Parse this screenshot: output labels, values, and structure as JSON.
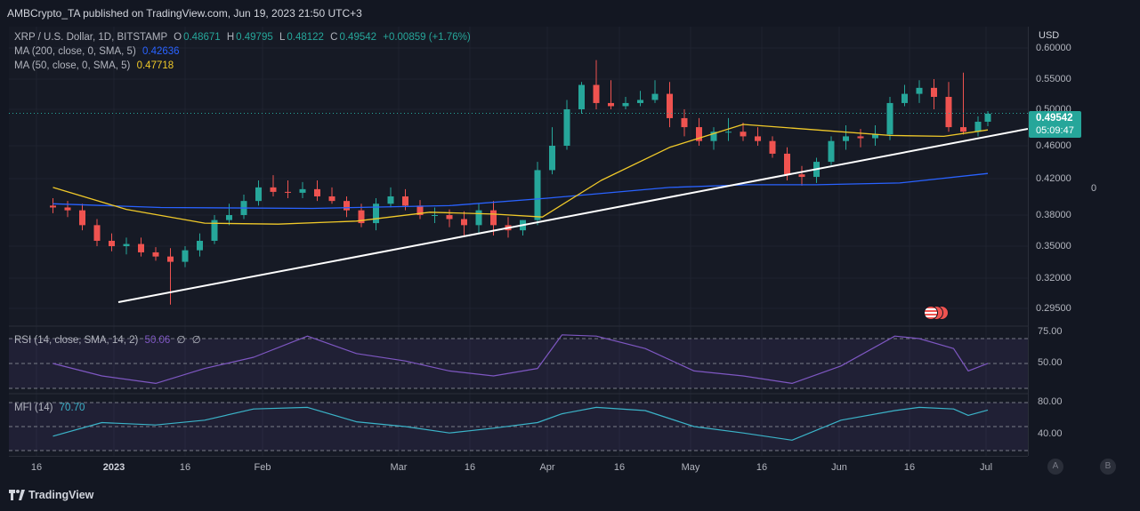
{
  "header": {
    "published": "AMBCrypto_TA published on TradingView.com, Jun 19, 2023 21:50 UTC+3"
  },
  "main_legend": {
    "symbol": "XRP / U.S. Dollar, 1D, BITSTAMP",
    "o_label": "O",
    "o": "0.48671",
    "h_label": "H",
    "h": "0.49795",
    "l_label": "L",
    "l": "0.48122",
    "c_label": "C",
    "c": "0.49542",
    "change": "+0.00859 (+1.76%)",
    "ma200_label": "MA (200, close, 0, SMA, 5)",
    "ma200_value": "0.42636",
    "ma50_label": "MA (50, close, 0, SMA, 5)",
    "ma50_value": "0.47718"
  },
  "rsi_legend": {
    "label": "RSI (14, close, SMA, 14, 2)",
    "value": "50.06",
    "extra1": "∅",
    "extra2": "∅"
  },
  "mfi_legend": {
    "label": "MFI (14)",
    "value": "70.70"
  },
  "price_axis": {
    "currency": "USD",
    "labels": [
      "0.60000",
      "0.55000",
      "0.50000",
      "0.46000",
      "0.42000",
      "0.38000",
      "0.35000",
      "0.32000",
      "0.29500"
    ],
    "current_price": "0.49542",
    "countdown": "05:09:47"
  },
  "rsi_axis": [
    "75.00",
    "50.00"
  ],
  "mfi_axis": [
    "80.00",
    "40.00"
  ],
  "right_panel": {
    "zero_label": "0"
  },
  "time_axis": [
    "16",
    "2023",
    "16",
    "Feb",
    "Mar",
    "16",
    "Apr",
    "16",
    "May",
    "16",
    "Jun",
    "16",
    "Jul"
  ],
  "buttons": {
    "a": "A",
    "b": "B"
  },
  "footer": {
    "brand": "TradingView"
  },
  "colors": {
    "up": "#26a69a",
    "down": "#ef5350",
    "ma200": "#2962ff",
    "ma50": "#f0c929",
    "trendline": "#ffffff",
    "rsi": "#7e57c2",
    "mfi": "#3bb3c8"
  },
  "chart_data": [
    {
      "type": "candlestick",
      "title": "XRP / U.S. Dollar, 1D, BITSTAMP",
      "ylabel": "USD",
      "yscale": "log",
      "x": [
        "2022-12-10",
        "2022-12-13",
        "2022-12-16",
        "2022-12-19",
        "2022-12-22",
        "2022-12-25",
        "2022-12-28",
        "2022-12-31",
        "2023-01-03",
        "2023-01-06",
        "2023-01-09",
        "2023-01-12",
        "2023-01-15",
        "2023-01-18",
        "2023-01-21",
        "2023-01-24",
        "2023-01-27",
        "2023-01-30",
        "2023-02-02",
        "2023-02-05",
        "2023-02-08",
        "2023-02-11",
        "2023-02-14",
        "2023-02-17",
        "2023-02-20",
        "2023-02-23",
        "2023-02-26",
        "2023-03-01",
        "2023-03-04",
        "2023-03-07",
        "2023-03-10",
        "2023-03-13",
        "2023-03-16",
        "2023-03-19",
        "2023-03-22",
        "2023-03-25",
        "2023-03-28",
        "2023-03-31",
        "2023-04-03",
        "2023-04-06",
        "2023-04-09",
        "2023-04-12",
        "2023-04-15",
        "2023-04-18",
        "2023-04-21",
        "2023-04-24",
        "2023-04-27",
        "2023-04-30",
        "2023-05-03",
        "2023-05-06",
        "2023-05-09",
        "2023-05-12",
        "2023-05-15",
        "2023-05-18",
        "2023-05-21",
        "2023-05-24",
        "2023-05-27",
        "2023-05-30",
        "2023-06-02",
        "2023-06-05",
        "2023-06-08",
        "2023-06-11",
        "2023-06-14",
        "2023-06-17",
        "2023-06-19"
      ],
      "open": [
        0.39,
        0.388,
        0.385,
        0.37,
        0.355,
        0.35,
        0.352,
        0.344,
        0.34,
        0.335,
        0.346,
        0.355,
        0.375,
        0.38,
        0.395,
        0.41,
        0.405,
        0.404,
        0.408,
        0.4,
        0.395,
        0.385,
        0.372,
        0.392,
        0.4,
        0.39,
        0.38,
        0.38,
        0.376,
        0.37,
        0.385,
        0.37,
        0.365,
        0.375,
        0.43,
        0.46,
        0.5,
        0.54,
        0.51,
        0.505,
        0.51,
        0.515,
        0.525,
        0.49,
        0.48,
        0.465,
        0.475,
        0.475,
        0.47,
        0.465,
        0.45,
        0.425,
        0.422,
        0.44,
        0.465,
        0.47,
        0.468,
        0.472,
        0.51,
        0.525,
        0.535,
        0.52,
        0.48,
        0.475,
        0.486
      ],
      "high": [
        0.398,
        0.395,
        0.392,
        0.376,
        0.362,
        0.358,
        0.358,
        0.349,
        0.348,
        0.35,
        0.362,
        0.38,
        0.392,
        0.402,
        0.418,
        0.424,
        0.418,
        0.416,
        0.418,
        0.41,
        0.4,
        0.392,
        0.398,
        0.41,
        0.408,
        0.396,
        0.388,
        0.386,
        0.384,
        0.392,
        0.395,
        0.378,
        0.375,
        0.44,
        0.48,
        0.515,
        0.545,
        0.58,
        0.548,
        0.52,
        0.53,
        0.548,
        0.545,
        0.5,
        0.49,
        0.48,
        0.49,
        0.485,
        0.48,
        0.47,
        0.458,
        0.435,
        0.445,
        0.47,
        0.482,
        0.478,
        0.482,
        0.52,
        0.54,
        0.548,
        0.55,
        0.545,
        0.56,
        0.492,
        0.498
      ],
      "low": [
        0.382,
        0.378,
        0.365,
        0.35,
        0.345,
        0.342,
        0.34,
        0.336,
        0.298,
        0.33,
        0.34,
        0.352,
        0.37,
        0.376,
        0.39,
        0.4,
        0.398,
        0.398,
        0.395,
        0.392,
        0.378,
        0.368,
        0.365,
        0.388,
        0.385,
        0.376,
        0.372,
        0.368,
        0.36,
        0.362,
        0.36,
        0.358,
        0.36,
        0.37,
        0.425,
        0.455,
        0.495,
        0.5,
        0.5,
        0.5,
        0.505,
        0.51,
        0.48,
        0.47,
        0.46,
        0.455,
        0.465,
        0.465,
        0.46,
        0.445,
        0.418,
        0.412,
        0.415,
        0.436,
        0.455,
        0.458,
        0.46,
        0.466,
        0.505,
        0.51,
        0.5,
        0.475,
        0.472,
        0.47,
        0.481
      ],
      "close": [
        0.388,
        0.385,
        0.37,
        0.355,
        0.35,
        0.352,
        0.344,
        0.34,
        0.335,
        0.346,
        0.355,
        0.375,
        0.38,
        0.395,
        0.41,
        0.405,
        0.404,
        0.408,
        0.4,
        0.395,
        0.385,
        0.372,
        0.392,
        0.4,
        0.39,
        0.38,
        0.38,
        0.376,
        0.37,
        0.385,
        0.37,
        0.365,
        0.375,
        0.43,
        0.46,
        0.5,
        0.54,
        0.51,
        0.505,
        0.51,
        0.515,
        0.525,
        0.49,
        0.48,
        0.465,
        0.475,
        0.475,
        0.47,
        0.465,
        0.45,
        0.425,
        0.422,
        0.44,
        0.465,
        0.47,
        0.468,
        0.472,
        0.51,
        0.525,
        0.535,
        0.52,
        0.48,
        0.475,
        0.486,
        0.495
      ]
    },
    {
      "type": "line",
      "name": "MA (200, close, 0, SMA, 5)",
      "x": [
        "2022-12-10",
        "2023-01-01",
        "2023-02-01",
        "2023-03-01",
        "2023-03-21",
        "2023-04-15",
        "2023-05-01",
        "2023-05-15",
        "2023-06-01",
        "2023-06-19"
      ],
      "values": [
        0.392,
        0.388,
        0.387,
        0.39,
        0.398,
        0.41,
        0.413,
        0.413,
        0.415,
        0.426
      ]
    },
    {
      "type": "line",
      "name": "MA (50, close, 0, SMA, 5)",
      "x": [
        "2022-12-10",
        "2022-12-25",
        "2023-01-10",
        "2023-01-25",
        "2023-02-10",
        "2023-02-25",
        "2023-03-10",
        "2023-03-20",
        "2023-04-01",
        "2023-04-15",
        "2023-04-30",
        "2023-05-15",
        "2023-05-30",
        "2023-06-10",
        "2023-06-19"
      ],
      "values": [
        0.41,
        0.386,
        0.372,
        0.371,
        0.374,
        0.383,
        0.381,
        0.378,
        0.418,
        0.458,
        0.483,
        0.477,
        0.471,
        0.47,
        0.477
      ]
    },
    {
      "type": "line",
      "name": "RSI (14, close, SMA, 14, 2)",
      "x": [
        "2022-12-10",
        "2022-12-20",
        "2022-12-31",
        "2023-01-10",
        "2023-01-20",
        "2023-01-31",
        "2023-02-10",
        "2023-02-20",
        "2023-03-01",
        "2023-03-10",
        "2023-03-19",
        "2023-03-24",
        "2023-03-31",
        "2023-04-10",
        "2023-04-20",
        "2023-04-30",
        "2023-05-10",
        "2023-05-20",
        "2023-05-31",
        "2023-06-05",
        "2023-06-12",
        "2023-06-15",
        "2023-06-19"
      ],
      "values": [
        50,
        40,
        34,
        46,
        55,
        72,
        58,
        52,
        44,
        40,
        46,
        73,
        72,
        62,
        44,
        40,
        34,
        48,
        72,
        70,
        62,
        44,
        50.06
      ],
      "ylim": [
        0,
        100
      ]
    },
    {
      "type": "line",
      "name": "MFI (14)",
      "x": [
        "2022-12-10",
        "2022-12-20",
        "2022-12-31",
        "2023-01-10",
        "2023-01-20",
        "2023-01-31",
        "2023-02-10",
        "2023-02-20",
        "2023-03-01",
        "2023-03-10",
        "2023-03-19",
        "2023-03-24",
        "2023-03-31",
        "2023-04-10",
        "2023-04-20",
        "2023-04-30",
        "2023-05-10",
        "2023-05-20",
        "2023-05-31",
        "2023-06-05",
        "2023-06-12",
        "2023-06-15",
        "2023-06-19"
      ],
      "values": [
        38,
        55,
        52,
        58,
        72,
        74,
        56,
        50,
        42,
        48,
        55,
        66,
        74,
        70,
        50,
        42,
        33,
        58,
        70,
        74,
        72,
        64,
        70.7
      ],
      "ylim": [
        0,
        100
      ]
    }
  ]
}
